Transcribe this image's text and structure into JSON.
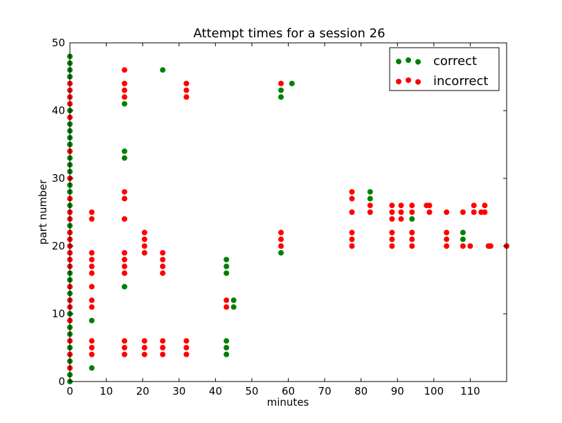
{
  "chart_data": {
    "type": "scatter",
    "title": "Attempt times for a session 26",
    "xlabel": "minutes",
    "ylabel": "part number",
    "xlim": [
      0,
      120
    ],
    "ylim": [
      0,
      50
    ],
    "xticks": [
      "0",
      "10",
      "20",
      "30",
      "40",
      "50",
      "60",
      "70",
      "80",
      "90",
      "100",
      "110"
    ],
    "yticks": [
      "0",
      "10",
      "20",
      "30",
      "40",
      "50"
    ],
    "grid": false,
    "legend": "top-right",
    "series": [
      {
        "name": "correct",
        "color": "#008000",
        "points": [
          [
            0,
            0
          ],
          [
            0,
            1
          ],
          [
            0,
            3
          ],
          [
            0,
            5
          ],
          [
            0,
            7
          ],
          [
            0,
            8
          ],
          [
            0,
            10
          ],
          [
            0,
            13
          ],
          [
            0,
            15
          ],
          [
            0,
            16
          ],
          [
            0,
            23
          ],
          [
            0,
            26
          ],
          [
            0,
            28
          ],
          [
            0,
            29
          ],
          [
            0,
            31
          ],
          [
            0,
            32
          ],
          [
            0,
            33
          ],
          [
            0,
            35
          ],
          [
            0,
            36
          ],
          [
            0,
            37
          ],
          [
            0,
            38
          ],
          [
            0,
            40
          ],
          [
            0,
            45
          ],
          [
            0,
            46
          ],
          [
            0,
            47
          ],
          [
            0,
            48
          ],
          [
            6,
            2
          ],
          [
            6,
            9
          ],
          [
            15,
            14
          ],
          [
            15,
            33
          ],
          [
            15,
            34
          ],
          [
            15,
            41
          ],
          [
            25.5,
            46
          ],
          [
            43,
            4
          ],
          [
            43,
            5
          ],
          [
            43,
            6
          ],
          [
            43,
            16
          ],
          [
            43,
            17
          ],
          [
            43,
            18
          ],
          [
            45,
            11
          ],
          [
            45,
            12
          ],
          [
            58,
            19
          ],
          [
            58,
            42
          ],
          [
            58,
            43
          ],
          [
            61,
            44
          ],
          [
            82.5,
            27
          ],
          [
            82.5,
            28
          ],
          [
            94,
            24
          ],
          [
            108,
            21
          ],
          [
            108,
            22
          ]
        ]
      },
      {
        "name": "incorrect",
        "color": "#ff0000",
        "points": [
          [
            0,
            2
          ],
          [
            0,
            4
          ],
          [
            0,
            6
          ],
          [
            0,
            9
          ],
          [
            0,
            11
          ],
          [
            0,
            12
          ],
          [
            0,
            14
          ],
          [
            0,
            17
          ],
          [
            0,
            18
          ],
          [
            0,
            19
          ],
          [
            0,
            20
          ],
          [
            0,
            21
          ],
          [
            0,
            22
          ],
          [
            0,
            24
          ],
          [
            0,
            25
          ],
          [
            0,
            27
          ],
          [
            0,
            30
          ],
          [
            0,
            34
          ],
          [
            0,
            39
          ],
          [
            0,
            41
          ],
          [
            0,
            42
          ],
          [
            0,
            43
          ],
          [
            0,
            44
          ],
          [
            6,
            4
          ],
          [
            6,
            5
          ],
          [
            6,
            6
          ],
          [
            6,
            11
          ],
          [
            6,
            12
          ],
          [
            6,
            14
          ],
          [
            6,
            16
          ],
          [
            6,
            17
          ],
          [
            6,
            18
          ],
          [
            6,
            19
          ],
          [
            6,
            24
          ],
          [
            6,
            25
          ],
          [
            15,
            4
          ],
          [
            15,
            5
          ],
          [
            15,
            6
          ],
          [
            15,
            16
          ],
          [
            15,
            17
          ],
          [
            15,
            18
          ],
          [
            15,
            19
          ],
          [
            15,
            24
          ],
          [
            15,
            27
          ],
          [
            15,
            28
          ],
          [
            15,
            42
          ],
          [
            15,
            43
          ],
          [
            15,
            44
          ],
          [
            15,
            46
          ],
          [
            20.5,
            4
          ],
          [
            20.5,
            5
          ],
          [
            20.5,
            6
          ],
          [
            20.5,
            19
          ],
          [
            20.5,
            20
          ],
          [
            20.5,
            21
          ],
          [
            20.5,
            22
          ],
          [
            25.5,
            4
          ],
          [
            25.5,
            5
          ],
          [
            25.5,
            6
          ],
          [
            25.5,
            16
          ],
          [
            25.5,
            17
          ],
          [
            25.5,
            18
          ],
          [
            25.5,
            19
          ],
          [
            32,
            4
          ],
          [
            32,
            5
          ],
          [
            32,
            6
          ],
          [
            32,
            42
          ],
          [
            32,
            43
          ],
          [
            32,
            44
          ],
          [
            43,
            11
          ],
          [
            43,
            12
          ],
          [
            58,
            20
          ],
          [
            58,
            21
          ],
          [
            58,
            22
          ],
          [
            58,
            44
          ],
          [
            77.5,
            20
          ],
          [
            77.5,
            21
          ],
          [
            77.5,
            22
          ],
          [
            77.5,
            25
          ],
          [
            77.5,
            27
          ],
          [
            77.5,
            28
          ],
          [
            82.5,
            25
          ],
          [
            82.5,
            26
          ],
          [
            88.5,
            20
          ],
          [
            88.5,
            21
          ],
          [
            88.5,
            22
          ],
          [
            88.5,
            24
          ],
          [
            88.5,
            25
          ],
          [
            88.5,
            26
          ],
          [
            91,
            24
          ],
          [
            91,
            25
          ],
          [
            91,
            26
          ],
          [
            94,
            20
          ],
          [
            94,
            21
          ],
          [
            94,
            22
          ],
          [
            94,
            25
          ],
          [
            94,
            26
          ],
          [
            98,
            26
          ],
          [
            98.8,
            25
          ],
          [
            98.8,
            26
          ],
          [
            103.5,
            20
          ],
          [
            103.5,
            21
          ],
          [
            103.5,
            22
          ],
          [
            103.5,
            25
          ],
          [
            108,
            20
          ],
          [
            108,
            25
          ],
          [
            110,
            20
          ],
          [
            111,
            25
          ],
          [
            111,
            26
          ],
          [
            113,
            25
          ],
          [
            114,
            25
          ],
          [
            114,
            26
          ],
          [
            115,
            20
          ],
          [
            115.6,
            20
          ],
          [
            120,
            20
          ]
        ]
      }
    ]
  }
}
